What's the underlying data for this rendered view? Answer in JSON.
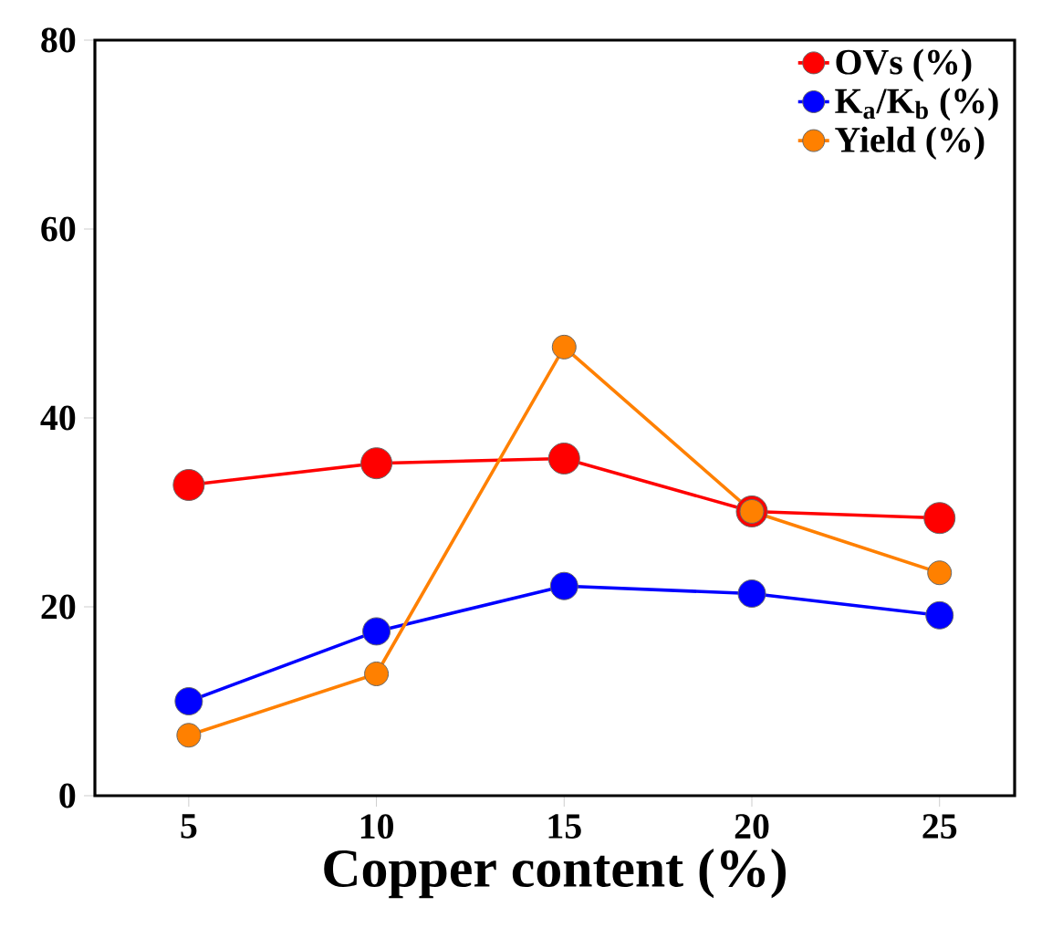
{
  "chart_data": {
    "type": "line",
    "xlabel": "Copper content (%)",
    "x": [
      5,
      10,
      15,
      20,
      25
    ],
    "series": [
      {
        "name": "OVs (%)",
        "color": "#ff0000",
        "values": [
          32.9,
          35.2,
          35.7,
          30.1,
          29.4
        ]
      },
      {
        "name": "K$_{a}$/K$_{b}$ (%)",
        "color": "#0000ff",
        "values": [
          10.0,
          17.4,
          22.2,
          21.4,
          19.1
        ]
      },
      {
        "name": "Yield (%)",
        "color": "#ff8000",
        "values": [
          6.4,
          12.9,
          47.5,
          30.1,
          23.6
        ]
      }
    ],
    "xlim": [
      2.5,
      27
    ],
    "xticks": [
      5,
      10,
      15,
      20,
      25
    ],
    "ylim": [
      0,
      80
    ],
    "yticks": [
      0,
      20,
      40,
      60,
      80
    ],
    "grid": false,
    "legend": "top right",
    "marker": "circle",
    "line_style": "solid"
  }
}
